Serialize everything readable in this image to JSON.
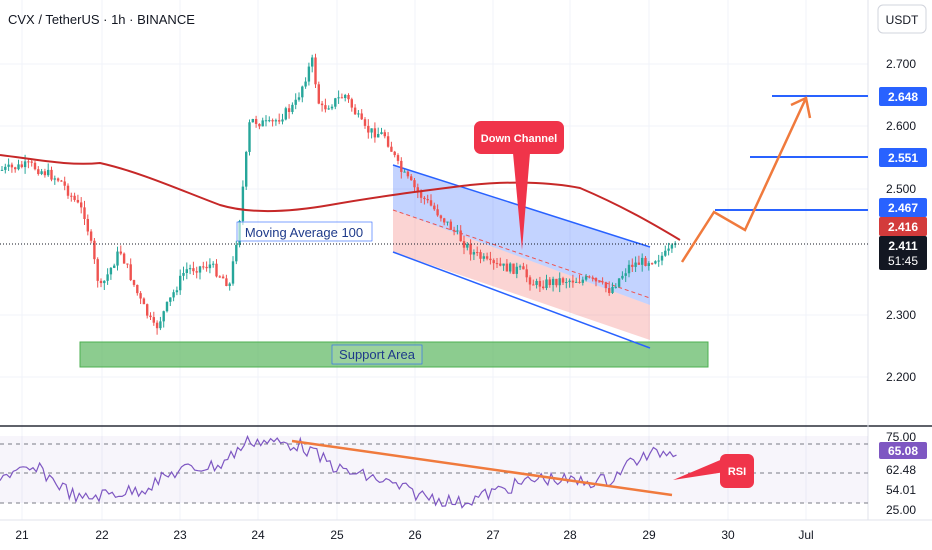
{
  "header": {
    "title": "CVX / TetherUS · 1h · BINANCE"
  },
  "currency_button": {
    "label": "USDT"
  },
  "chart_data": {
    "type": "candlestick",
    "symbol": "CVX / TetherUS",
    "interval": "1h",
    "exchange": "BINANCE",
    "price_axis": {
      "ticks": [
        "2.700",
        "2.600",
        "2.500",
        "2.300",
        "2.200"
      ],
      "ylim": [
        2.16,
        2.78
      ]
    },
    "rsi_axis": {
      "ticks": [
        "75.00",
        "62.48",
        "54.01",
        "25.00"
      ]
    },
    "x_axis": {
      "ticks": [
        "21",
        "22",
        "23",
        "24",
        "25",
        "26",
        "27",
        "28",
        "29",
        "30",
        "Jul"
      ]
    },
    "price_tags": [
      {
        "value": "2.648",
        "color": "#2962ff"
      },
      {
        "value": "2.551",
        "color": "#2962ff"
      },
      {
        "value": "2.467",
        "color": "#2962ff"
      },
      {
        "value": "2.416",
        "color": "#d33b3b"
      },
      {
        "value": "2.411",
        "color": "#131722"
      }
    ],
    "countdown": "51:45",
    "rsi_current": "65.08",
    "targets": [
      2.467,
      2.551,
      2.648
    ],
    "current_price": 2.411,
    "ma100_value": 2.416,
    "annotations": {
      "channel": "Down Channel",
      "ma": "Moving Average 100",
      "support": "Support Area",
      "rsi": "RSI"
    },
    "colors": {
      "up": "#26a69a",
      "down": "#ef5350",
      "ma": "#c62828",
      "channel": "#2962ff",
      "support": "#66bb6a",
      "projection": "#f07a3d",
      "rsi": "#7e57c2"
    }
  }
}
